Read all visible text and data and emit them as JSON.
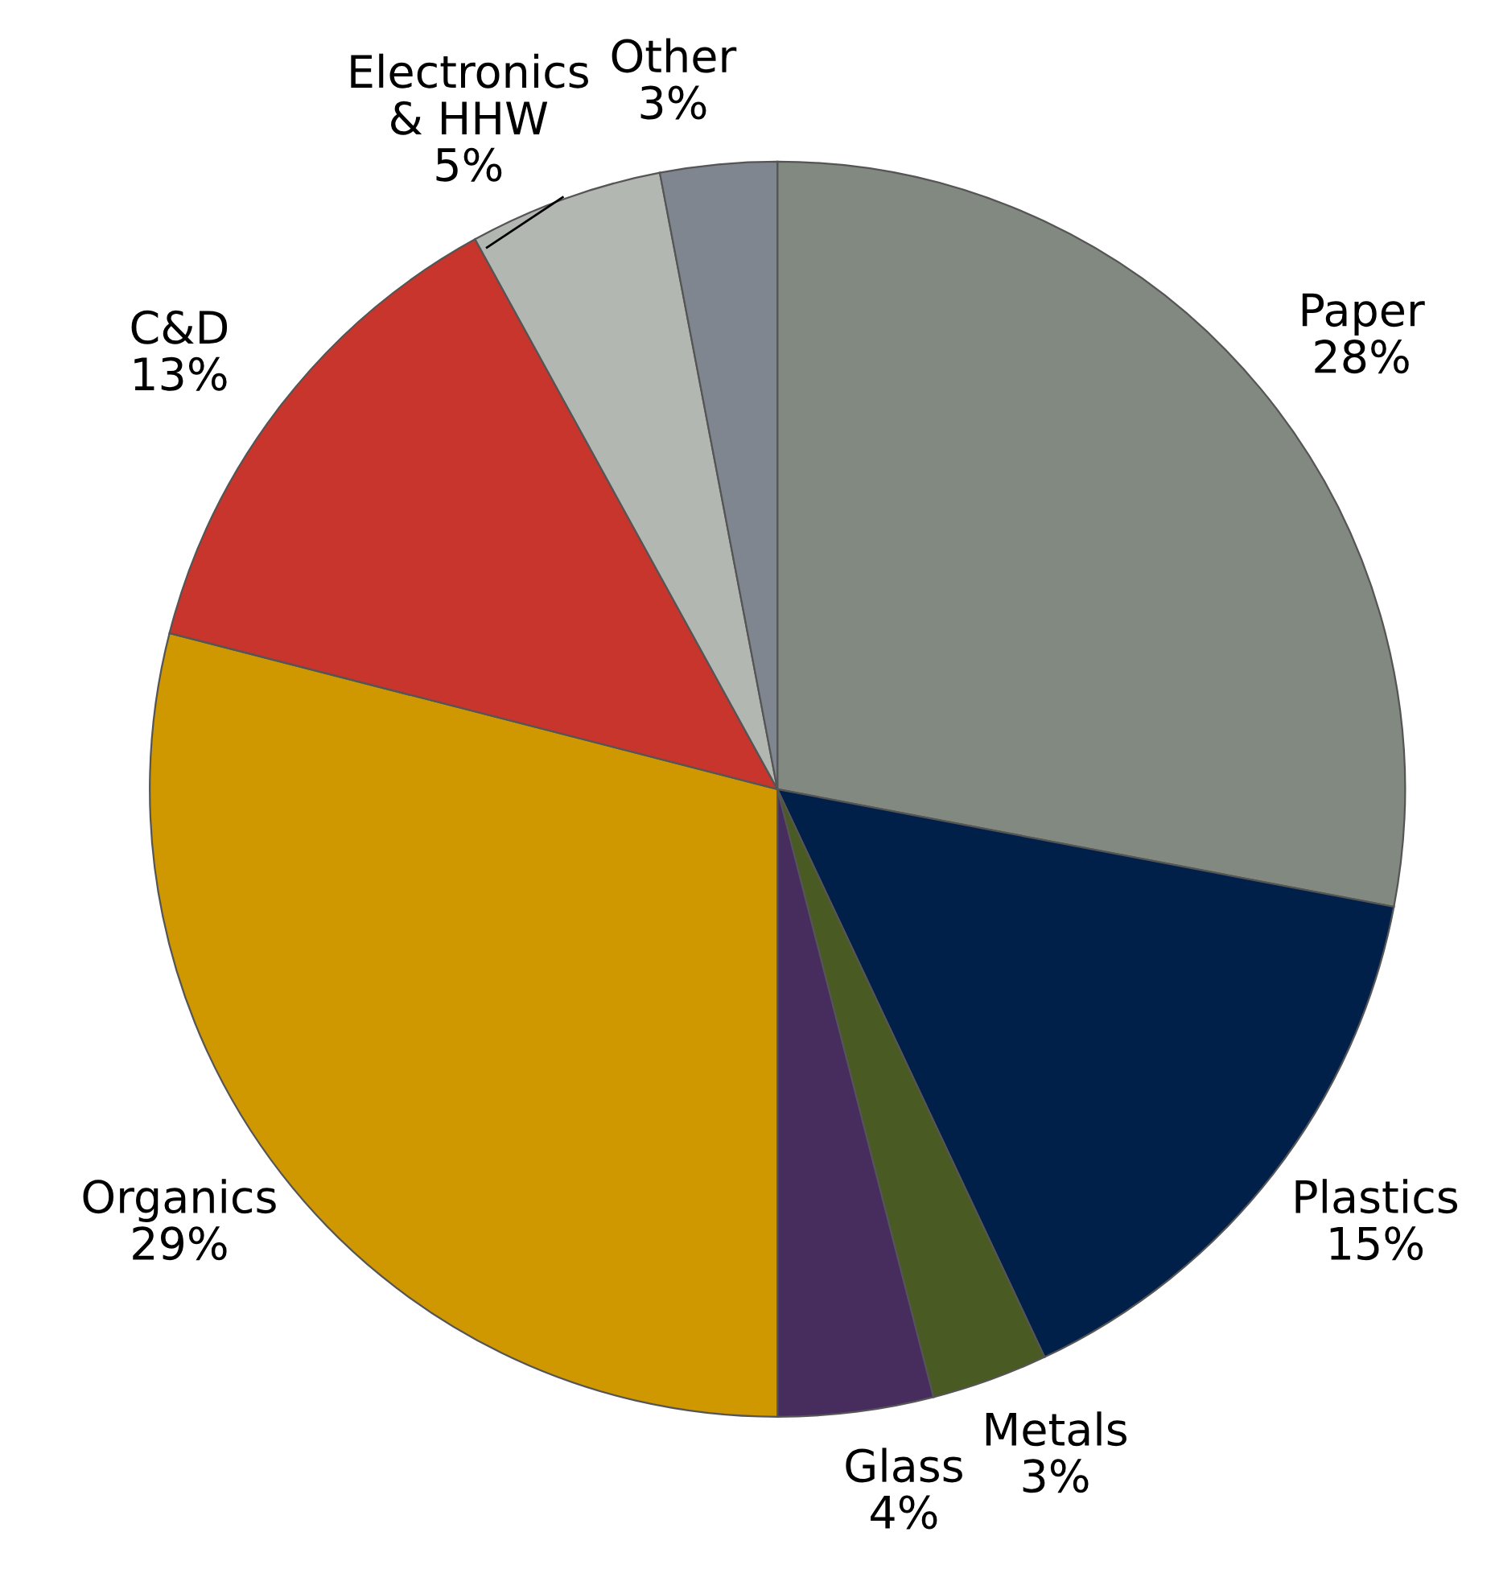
{
  "chart_data": {
    "type": "pie",
    "categories": [
      "Paper",
      "Plastics",
      "Metals",
      "Glass",
      "Organics",
      "C&D",
      "Electronics\n& HHW",
      "Other"
    ],
    "values": [
      28,
      15,
      3,
      4,
      29,
      13,
      5,
      3
    ],
    "value_labels": [
      "28%",
      "15%",
      "3%",
      "4%",
      "29%",
      "13%",
      "5%",
      "3%"
    ],
    "colors": [
      "#828980",
      "#00204a",
      "#4a5a23",
      "#472c5e",
      "#cf9800",
      "#c7352c",
      "#b3b7b2",
      "#80868f"
    ],
    "legend": false
  }
}
